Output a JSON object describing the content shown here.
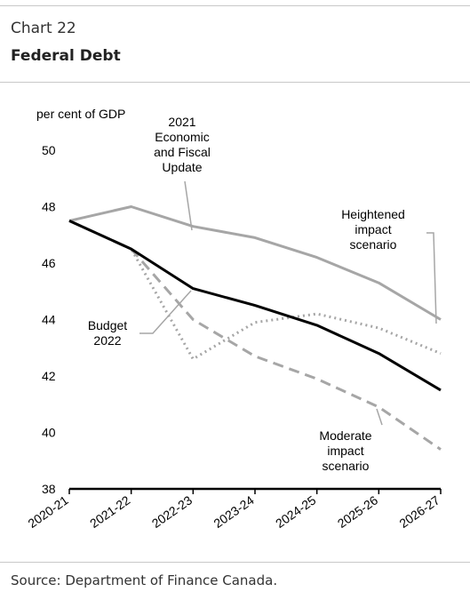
{
  "header": {
    "chart_number": "Chart 22",
    "title": "Federal Debt"
  },
  "footer": {
    "source": "Source: Department of Finance Canada."
  },
  "chart_data": {
    "type": "line",
    "title": "Federal Debt",
    "ylabel": "per cent of GDP",
    "xlabel": "",
    "ylim": [
      38,
      50
    ],
    "yticks": [
      38,
      40,
      42,
      44,
      46,
      48,
      50
    ],
    "grid": false,
    "categories": [
      "2020-21",
      "2021-22",
      "2022-23",
      "2023-24",
      "2024-25",
      "2025-26",
      "2026-27"
    ],
    "series": [
      {
        "name": "2021 Economic and Fiscal Update",
        "label_lines": [
          "2021",
          "Economic",
          "and Fiscal",
          "Update"
        ],
        "style": "solid",
        "color": "#a6a6a6",
        "values": [
          47.5,
          48.0,
          47.3,
          46.9,
          46.2,
          45.3,
          44.0
        ]
      },
      {
        "name": "Budget 2022",
        "label_lines": [
          "Budget",
          "2022"
        ],
        "style": "solid",
        "color": "#000000",
        "values": [
          47.5,
          46.5,
          45.1,
          44.5,
          43.8,
          42.8,
          41.5
        ]
      },
      {
        "name": "Heightened impact scenario",
        "label_lines": [
          "Heightened",
          "impact",
          "scenario"
        ],
        "style": "dotted",
        "color": "#a6a6a6",
        "values": [
          47.5,
          46.5,
          42.6,
          43.9,
          44.2,
          43.7,
          42.8
        ]
      },
      {
        "name": "Moderate impact scenario",
        "label_lines": [
          "Moderate",
          "impact",
          "scenario"
        ],
        "style": "dashed",
        "color": "#a6a6a6",
        "values": [
          47.5,
          46.5,
          44.0,
          42.7,
          41.9,
          40.9,
          39.4
        ]
      }
    ]
  }
}
